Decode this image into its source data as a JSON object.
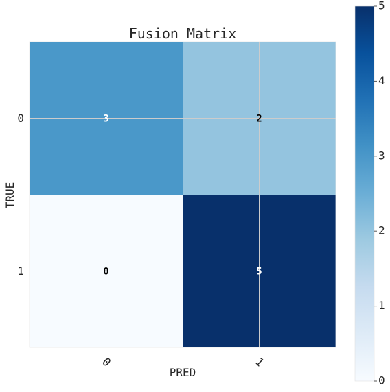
{
  "chart_data": {
    "type": "heatmap",
    "title": "Fusion Matrix",
    "xlabel": "PRED",
    "ylabel": "TRUE",
    "x_categories": [
      "0",
      "1"
    ],
    "y_categories": [
      "0",
      "1"
    ],
    "matrix": [
      [
        3,
        2
      ],
      [
        0,
        5
      ]
    ],
    "colormap": "Blues",
    "colorbar": {
      "range": [
        0,
        5
      ],
      "ticks": [
        "0",
        "1",
        "2",
        "3",
        "4",
        "5"
      ]
    },
    "grid": true,
    "colors": {
      "low": "#f7fbff",
      "high": "#08306b",
      "grid": "#cccccc",
      "text_dark_bg": "#ffffff",
      "text_light_bg": "#000000"
    }
  }
}
